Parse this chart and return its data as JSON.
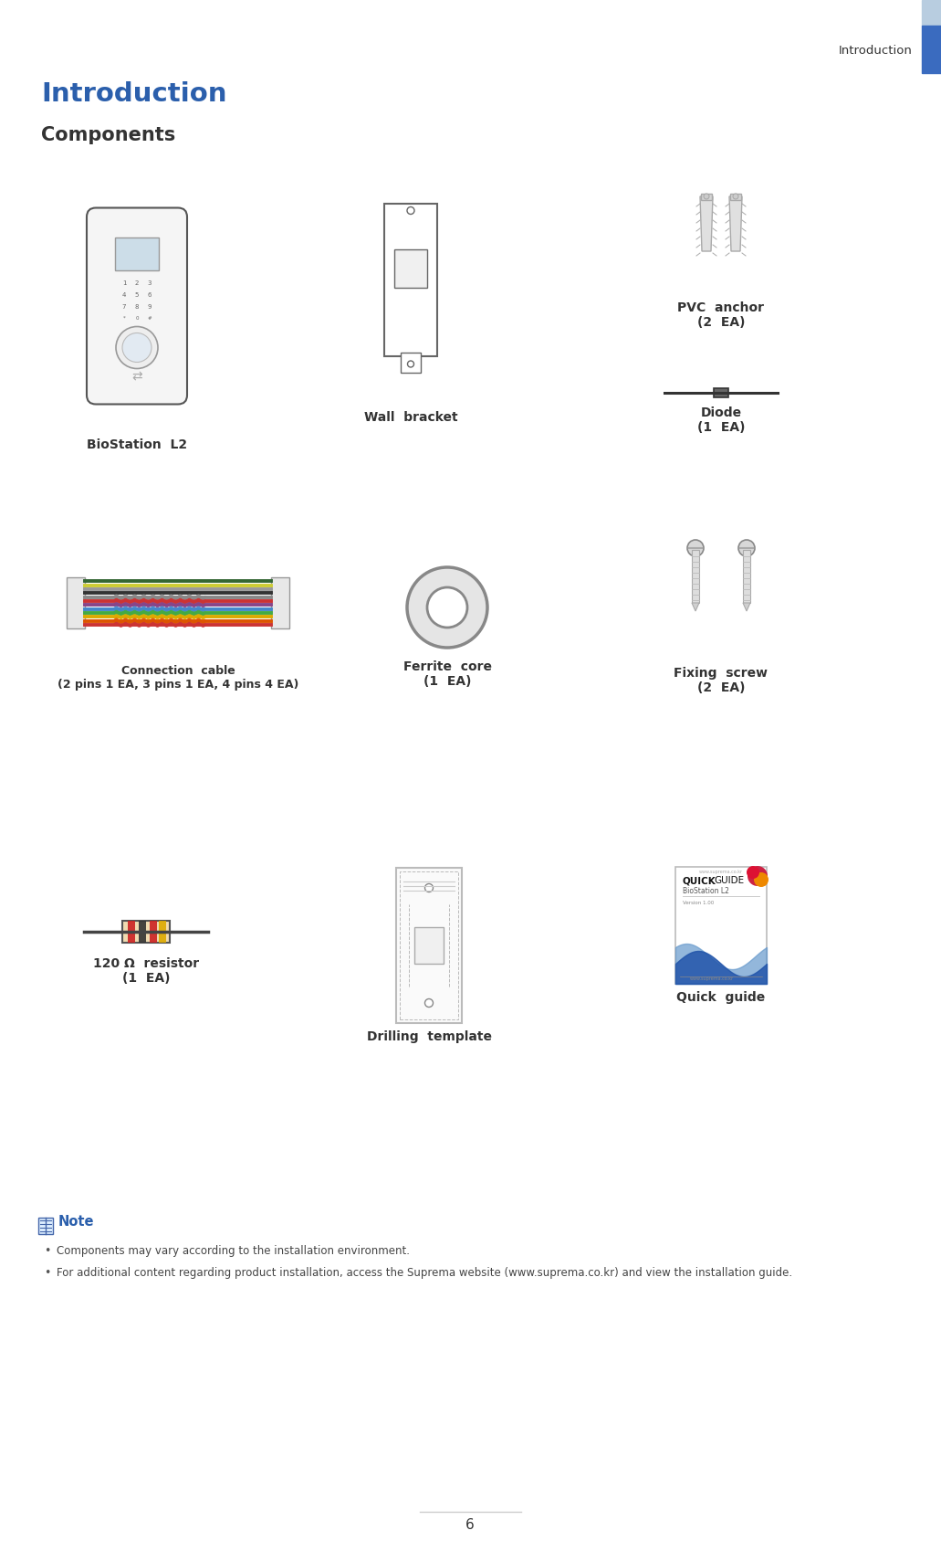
{
  "bg_color": "#ffffff",
  "header_bar_light_color": "#b8cde0",
  "header_bar_dark_color": "#3a6bbf",
  "header_text": "Introduction",
  "header_text_color": "#333333",
  "title_intro_text": "Introduction",
  "title_intro_color": "#2b5fac",
  "section_text": "Components",
  "section_color": "#333333",
  "note_title": "Note",
  "note_title_color": "#2b5fac",
  "note_bullet1": "Components may vary according to the installation environment.",
  "note_bullet2": "For additional content regarding product installation, access the Suprema website (www.suprema.co.kr) and view the installation guide.",
  "page_number": "6",
  "label_color": "#333333",
  "label_fontsize": 10,
  "fig_w": 10.31,
  "fig_h": 16.87,
  "dpi": 100
}
